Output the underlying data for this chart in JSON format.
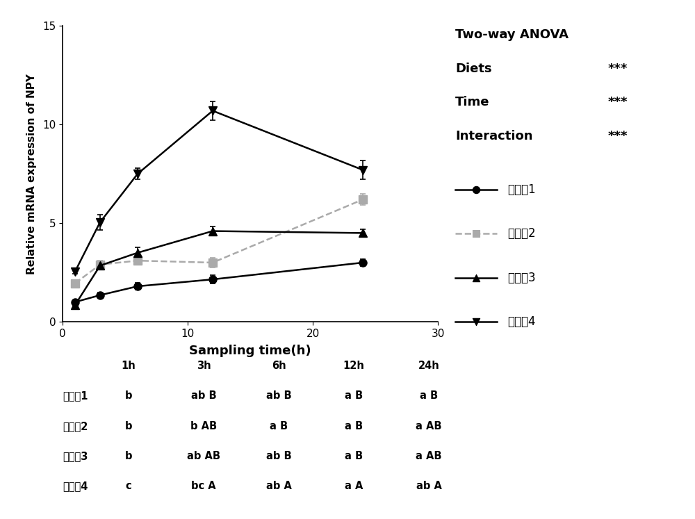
{
  "x": [
    1,
    3,
    6,
    12,
    24
  ],
  "series_order": [
    "实施例1",
    "实施例2",
    "实施例3",
    "实施例4"
  ],
  "series": {
    "实施例1": {
      "y": [
        1.0,
        1.35,
        1.8,
        2.15,
        3.0
      ],
      "yerr": [
        0.08,
        0.12,
        0.18,
        0.22,
        0.18
      ],
      "color": "#000000",
      "marker": "o",
      "linestyle": "-",
      "linewidth": 1.8,
      "markersize": 8
    },
    "实施例2": {
      "y": [
        1.95,
        2.9,
        3.1,
        3.0,
        6.2
      ],
      "yerr": [
        0.12,
        0.22,
        0.18,
        0.25,
        0.28
      ],
      "color": "#aaaaaa",
      "marker": "s",
      "linestyle": "--",
      "linewidth": 1.8,
      "markersize": 8
    },
    "实施例3": {
      "y": [
        0.85,
        2.85,
        3.5,
        4.6,
        4.5
      ],
      "yerr": [
        0.08,
        0.18,
        0.28,
        0.22,
        0.18
      ],
      "color": "#000000",
      "marker": "^",
      "linestyle": "-",
      "linewidth": 1.8,
      "markersize": 8
    },
    "实施例4": {
      "y": [
        2.55,
        5.05,
        7.5,
        10.7,
        7.7
      ],
      "yerr": [
        0.12,
        0.38,
        0.28,
        0.48,
        0.48
      ],
      "color": "#000000",
      "marker": "v",
      "linestyle": "-",
      "linewidth": 1.8,
      "markersize": 8
    }
  },
  "xlabel": "Sampling time(h)",
  "ylabel": "Relative mRNA expression of NPY",
  "xlim": [
    0,
    30
  ],
  "ylim": [
    0,
    15
  ],
  "yticks": [
    0,
    5,
    10,
    15
  ],
  "xticks": [
    0,
    10,
    20,
    30
  ],
  "table_headers": [
    "1h",
    "3h",
    "6h",
    "12h",
    "24h"
  ],
  "table_rows": {
    "实施例1": [
      "b",
      "ab B",
      "ab B",
      "a B",
      "a B"
    ],
    "实施例2": [
      "b",
      "b AB",
      "a B",
      "a B",
      "a AB"
    ],
    "实施例3": [
      "b",
      "ab AB",
      "ab B",
      "a B",
      "a AB"
    ],
    "实施例4": [
      "c",
      "bc A",
      "ab A",
      "a A",
      "ab A"
    ]
  },
  "legend_labels": [
    "实施例1",
    "实施例2",
    "实施例3",
    "实施例4"
  ],
  "anova_title": "Two-way ANOVA",
  "anova_rows": [
    [
      "Diets",
      "***"
    ],
    [
      "Time",
      "***"
    ],
    [
      "Interaction",
      "***"
    ]
  ]
}
